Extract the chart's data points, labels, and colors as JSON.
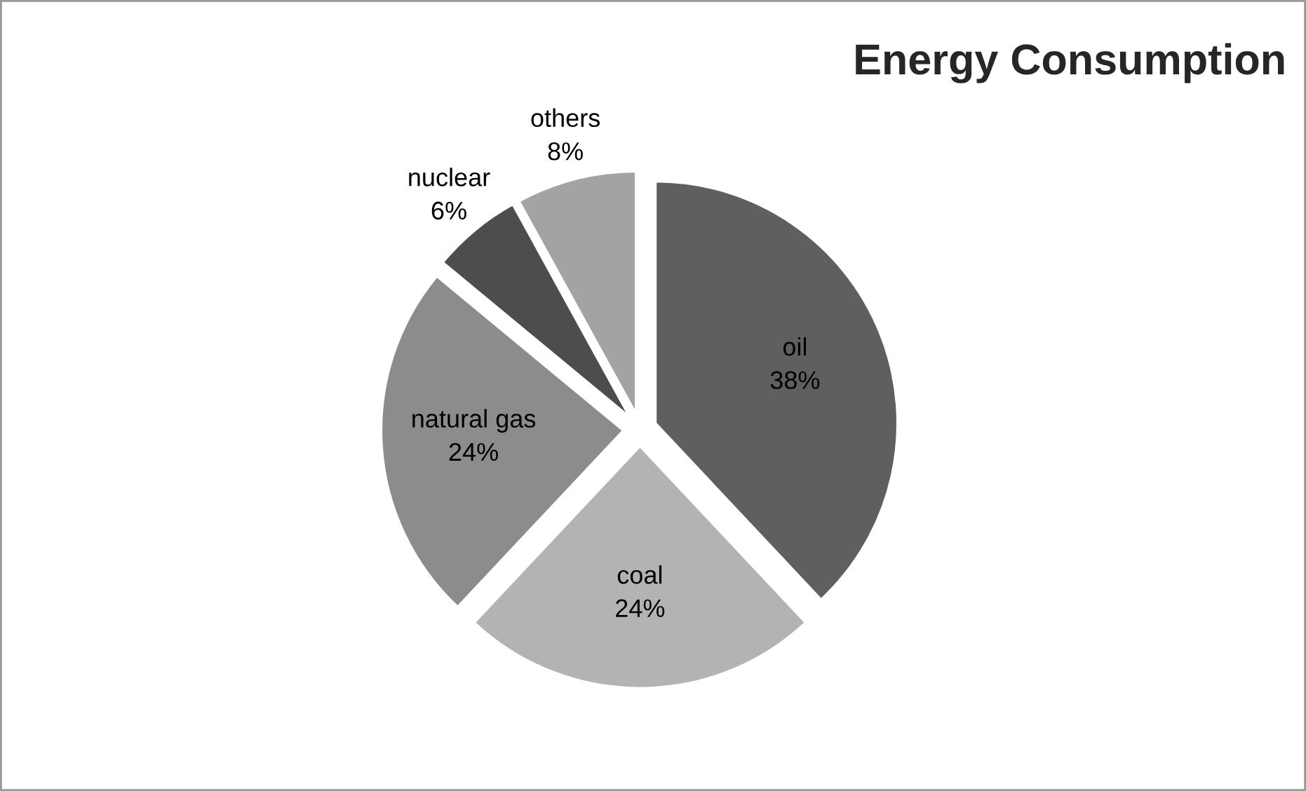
{
  "chart_data": {
    "type": "pie",
    "title": "Energy Consumption",
    "categories": [
      "oil",
      "coal",
      "natural gas",
      "nuclear",
      "others"
    ],
    "values": [
      38,
      24,
      24,
      6,
      8
    ],
    "colors": [
      "#5f5f5f",
      "#b3b3b3",
      "#8c8c8c",
      "#4d4d4d",
      "#a3a3a3"
    ],
    "value_labels": [
      "38%",
      "24%",
      "24%",
      "6%",
      "8%"
    ],
    "legend": false
  }
}
